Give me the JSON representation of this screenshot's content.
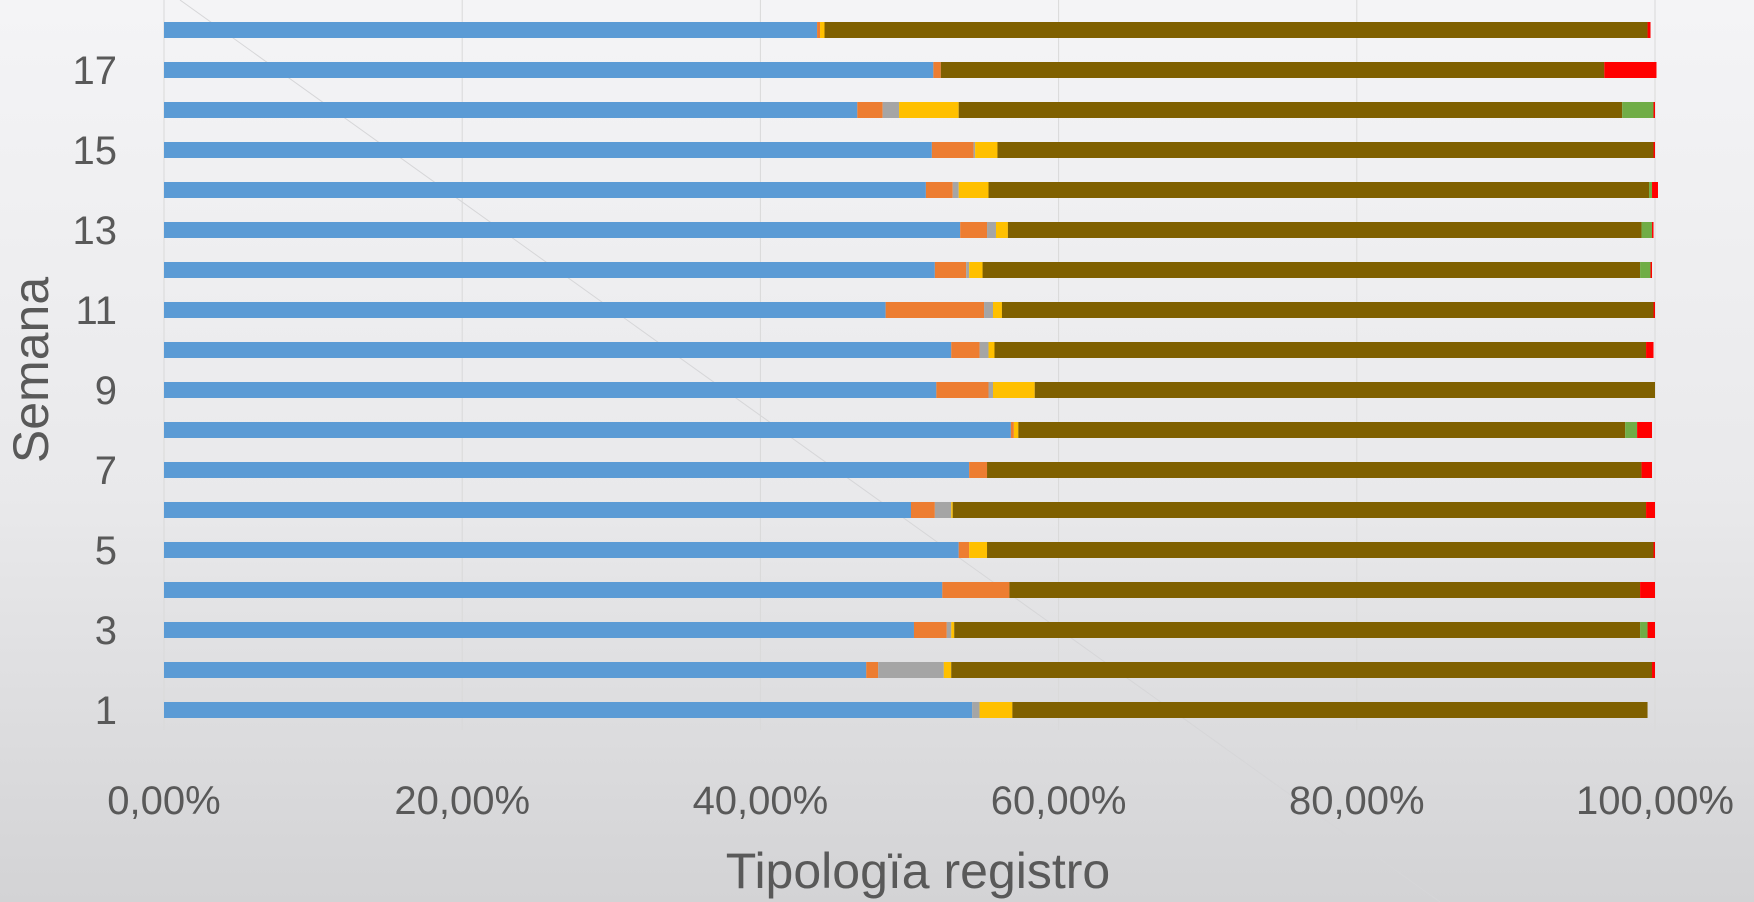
{
  "chart_data": {
    "type": "bar",
    "orientation": "horizontal",
    "stacked": "100%",
    "title": "",
    "xlabel": "Tipologïa registro",
    "ylabel": "Semana",
    "xlim": [
      0,
      100
    ],
    "x_ticks": [
      "0,00%",
      "20,00%",
      "40,00%",
      "60,00%",
      "80,00%",
      "100,00%"
    ],
    "y_tick_labels": [
      "1",
      "3",
      "5",
      "7",
      "9",
      "11",
      "13",
      "15",
      "17"
    ],
    "grid": "vertical",
    "legend": "none",
    "categories": [
      1,
      2,
      3,
      4,
      5,
      6,
      7,
      8,
      9,
      10,
      11,
      12,
      13,
      14,
      15,
      16,
      17,
      18
    ],
    "series": [
      {
        "color": "#5b9bd5",
        "values": [
          54.2,
          47.1,
          50.3,
          52.2,
          53.3,
          50.1,
          54.0,
          56.8,
          51.8,
          52.8,
          48.4,
          51.7,
          53.4,
          51.1,
          51.5,
          46.5,
          51.6,
          43.8
        ]
      },
      {
        "color": "#ed7d31",
        "values": [
          0.0,
          0.8,
          2.2,
          4.5,
          0.7,
          1.6,
          1.2,
          0.2,
          3.5,
          1.9,
          6.6,
          2.1,
          1.8,
          1.8,
          2.8,
          1.7,
          0.5,
          0.2
        ]
      },
      {
        "color": "#a5a5a5",
        "values": [
          0.5,
          4.4,
          0.3,
          0.0,
          0.0,
          1.1,
          0.0,
          0.0,
          0.3,
          0.6,
          0.6,
          0.2,
          0.6,
          0.4,
          0.1,
          1.1,
          0.0,
          0.0
        ]
      },
      {
        "color": "#ffc000",
        "values": [
          2.2,
          0.5,
          0.2,
          0.0,
          1.2,
          0.1,
          0.0,
          0.3,
          2.8,
          0.4,
          0.6,
          0.9,
          0.8,
          2.0,
          1.5,
          4.0,
          0.0,
          0.3
        ]
      },
      {
        "color": "#7f6000",
        "values": [
          42.6,
          47.0,
          46.0,
          42.3,
          44.7,
          46.5,
          43.9,
          40.7,
          41.6,
          43.7,
          43.7,
          44.1,
          42.5,
          44.3,
          44.0,
          44.5,
          44.5,
          55.2
        ]
      },
      {
        "color": "#70ad47",
        "values": [
          0.0,
          0.0,
          0.5,
          0.0,
          0.0,
          0.0,
          0.0,
          0.8,
          0.0,
          0.0,
          0.0,
          0.7,
          0.7,
          0.2,
          0.0,
          2.1,
          0.0,
          0.0
        ]
      },
      {
        "color": "#ff0000",
        "values": [
          0.0,
          0.2,
          0.5,
          1.0,
          0.1,
          0.6,
          0.7,
          1.0,
          0.0,
          0.5,
          0.1,
          0.1,
          0.1,
          0.4,
          0.1,
          0.1,
          3.5,
          0.2
        ]
      }
    ]
  }
}
